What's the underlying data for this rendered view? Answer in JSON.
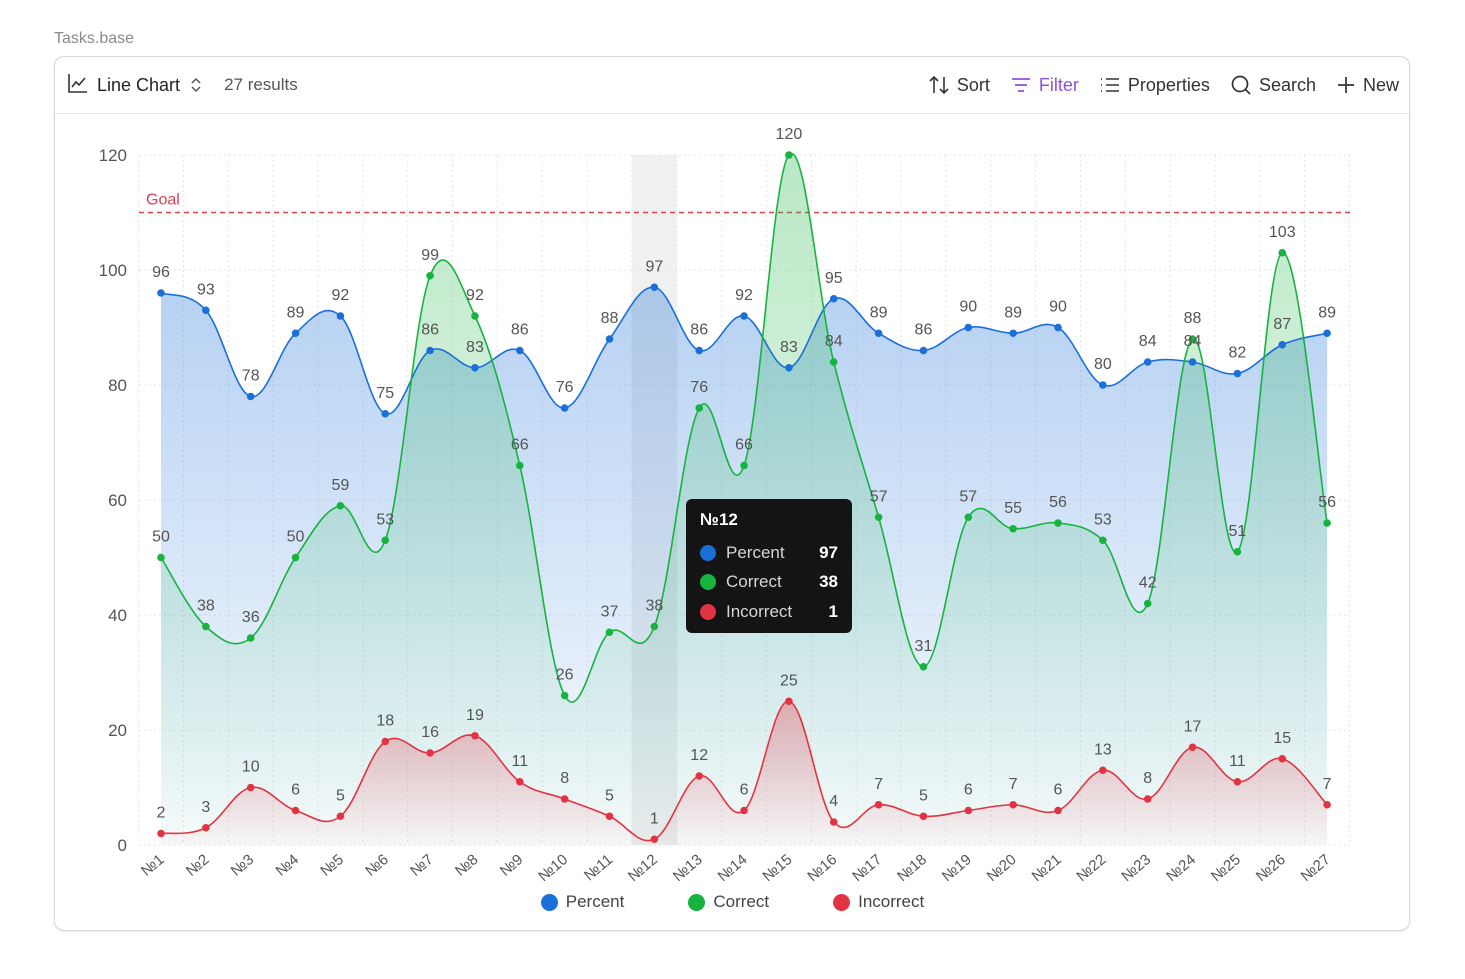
{
  "file_label": "Tasks.base",
  "toolbar": {
    "view_label": "Line Chart",
    "results": "27 results",
    "sort_label": "Sort",
    "filter_label": "Filter",
    "properties_label": "Properties",
    "search_label": "Search",
    "new_label": "New",
    "accent_color": "#8a55d8"
  },
  "tooltip": {
    "title": "№12",
    "rows": [
      {
        "name": "Percent",
        "value": "97",
        "color": "#1a6fd8"
      },
      {
        "name": "Correct",
        "value": "38",
        "color": "#16b33f"
      },
      {
        "name": "Incorrect",
        "value": "1",
        "color": "#e23342"
      }
    ]
  },
  "chart_data": {
    "type": "line",
    "categories": [
      "№1",
      "№2",
      "№3",
      "№4",
      "№5",
      "№6",
      "№7",
      "№8",
      "№9",
      "№10",
      "№11",
      "№12",
      "№13",
      "№14",
      "№15",
      "№16",
      "№17",
      "№18",
      "№19",
      "№20",
      "№21",
      "№22",
      "№23",
      "№24",
      "№25",
      "№26",
      "№27"
    ],
    "series": [
      {
        "name": "Percent",
        "color": "#1a6fd8",
        "values": [
          96,
          93,
          78,
          89,
          92,
          75,
          86,
          83,
          86,
          76,
          88,
          97,
          86,
          92,
          83,
          95,
          89,
          86,
          90,
          89,
          90,
          80,
          84,
          84,
          82,
          87,
          89
        ]
      },
      {
        "name": "Correct",
        "color": "#16b33f",
        "values": [
          50,
          38,
          36,
          50,
          59,
          53,
          99,
          92,
          66,
          26,
          37,
          38,
          76,
          66,
          120,
          84,
          57,
          31,
          57,
          55,
          56,
          53,
          42,
          88,
          51,
          103,
          56
        ]
      },
      {
        "name": "Incorrect",
        "color": "#e23342",
        "values": [
          2,
          3,
          10,
          6,
          5,
          18,
          16,
          19,
          11,
          8,
          5,
          1,
          12,
          6,
          25,
          4,
          7,
          5,
          6,
          7,
          6,
          13,
          8,
          17,
          11,
          15,
          7
        ]
      }
    ],
    "ylim": [
      0,
      120
    ],
    "yticks": [
      0,
      20,
      40,
      60,
      80,
      100,
      120
    ],
    "goal": {
      "label": "Goal",
      "value": 110,
      "color": "#d9434f"
    },
    "highlight_category": "№12",
    "grid": true,
    "legend": "bottom-center"
  }
}
